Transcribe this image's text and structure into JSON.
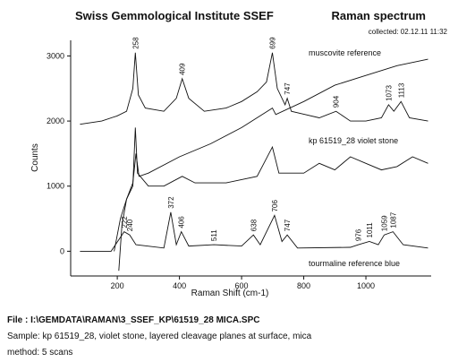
{
  "header": {
    "institute": "Swiss Gemmological Institute SSEF",
    "title": "Raman spectrum",
    "collected": "collected: 02.12.11  11:32"
  },
  "chart_data": {
    "type": "line",
    "xlabel": "Raman Shift (cm-1)",
    "ylabel": "Counts",
    "xlim": [
      50,
      1210
    ],
    "ylim": [
      -380,
      3240
    ],
    "xticks": [
      200,
      400,
      600,
      800,
      1000
    ],
    "yticks": [
      0,
      1000,
      2000,
      3000
    ],
    "series": [
      {
        "name": "muscovite reference",
        "color": "#111111",
        "x": [
          80,
          150,
          200,
          230,
          250,
          258,
          268,
          290,
          350,
          390,
          409,
          430,
          480,
          550,
          600,
          650,
          680,
          699,
          715,
          740,
          747,
          760,
          850,
          904,
          950,
          1000,
          1050,
          1073,
          1090,
          1113,
          1140,
          1200
        ],
        "values": [
          1950,
          2000,
          2080,
          2150,
          2500,
          3050,
          2400,
          2200,
          2150,
          2350,
          2650,
          2350,
          2150,
          2200,
          2300,
          2450,
          2600,
          3050,
          2500,
          2250,
          2350,
          2150,
          2050,
          2150,
          2000,
          2000,
          2050,
          2250,
          2150,
          2300,
          2050,
          2000
        ],
        "peaks": [
          258,
          409,
          699,
          747,
          904,
          1073,
          1113
        ]
      },
      {
        "color": "#111111",
        "x": [
          205,
          215,
          230,
          250,
          260,
          270,
          300,
          400,
          500,
          600,
          699,
          710,
          800,
          900,
          1000,
          1100,
          1200
        ],
        "values": [
          -300,
          400,
          800,
          1050,
          1500,
          1150,
          1200,
          1450,
          1650,
          1900,
          2200,
          2100,
          2300,
          2550,
          2700,
          2850,
          2950
        ]
      },
      {
        "name": "kp 61519_28 violet stone",
        "color": "#111111",
        "x": [
          190,
          210,
          230,
          250,
          258,
          265,
          300,
          350,
          409,
          450,
          550,
          650,
          699,
          720,
          800,
          850,
          900,
          950,
          1000,
          1050,
          1100,
          1150,
          1200
        ],
        "values": [
          0,
          500,
          800,
          1000,
          1900,
          1200,
          1000,
          1000,
          1150,
          1050,
          1050,
          1150,
          1600,
          1200,
          1200,
          1350,
          1250,
          1450,
          1350,
          1250,
          1300,
          1450,
          1350
        ]
      },
      {
        "name": "tourmaline reference blue",
        "color": "#111111",
        "x": [
          80,
          180,
          222,
          240,
          260,
          350,
          372,
          390,
          406,
          430,
          511,
          600,
          638,
          660,
          706,
          730,
          747,
          780,
          950,
          976,
          1011,
          1040,
          1059,
          1087,
          1120,
          1200
        ],
        "values": [
          0,
          0,
          300,
          250,
          100,
          50,
          600,
          100,
          300,
          80,
          100,
          80,
          250,
          100,
          550,
          150,
          250,
          50,
          60,
          100,
          150,
          100,
          250,
          300,
          100,
          50
        ],
        "peaks": [
          222,
          240,
          372,
          406,
          511,
          638,
          706,
          747,
          976,
          1011,
          1059,
          1087
        ]
      }
    ]
  },
  "footer": {
    "file": "File : I:\\GEMDATA\\RAMAN\\3_SSEF_KP\\61519_28 MICA.SPC",
    "sample": "Sample: kp 61519_28, violet stone, layered cleavage planes at surface, mica",
    "method": "method: 5 scans"
  }
}
